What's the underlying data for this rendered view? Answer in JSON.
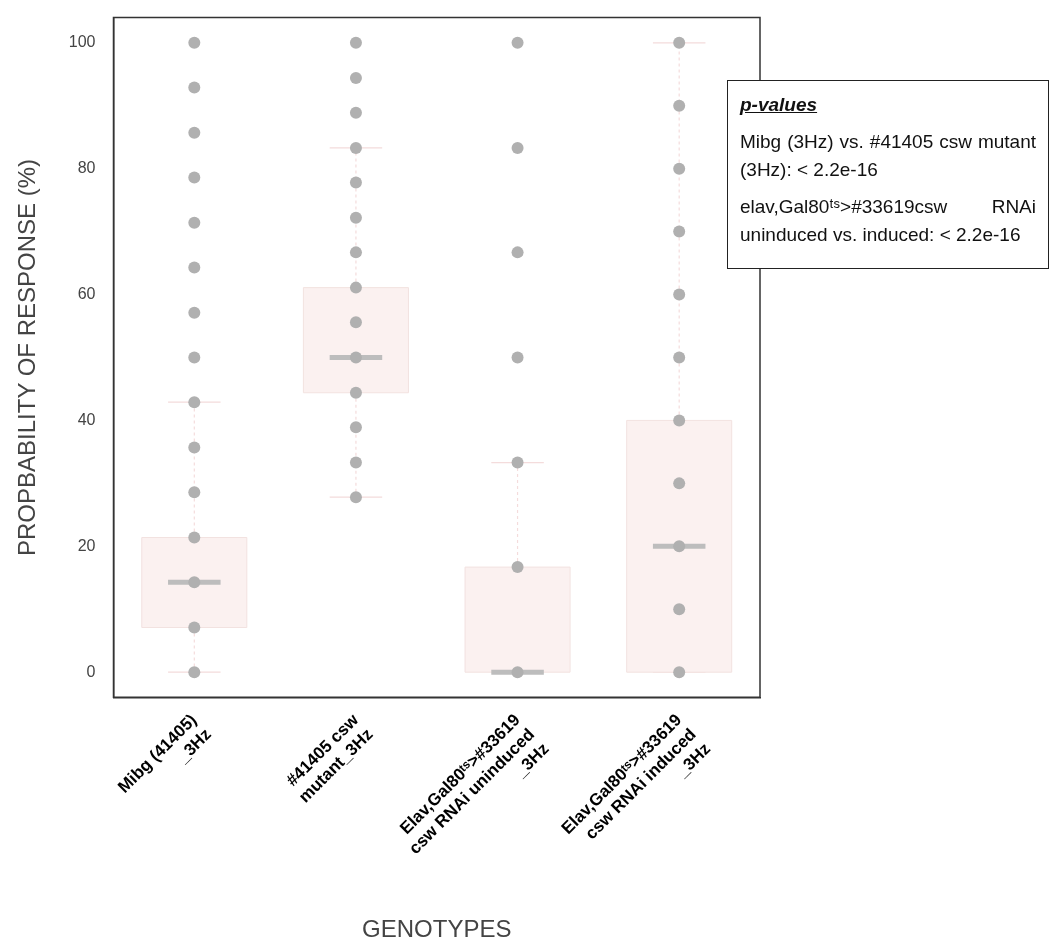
{
  "chart_data": {
    "type": "box",
    "xlabel": "GENOTYPES",
    "ylabel": "PROPBABILITY OF RESPONSE (%)",
    "categories": [
      "Mibg (41405) _3Hz",
      "#41405  csw mutant_3Hz",
      "Elav,Gal80ᵗˢ>#33619 csw RNAi uninduced _3Hz",
      "Elav,Gal80ᵗˢ>#33619 csw RNAi induced _3Hz"
    ],
    "ylim": [
      -4,
      104
    ],
    "yticks": [
      0,
      20,
      40,
      60,
      80,
      100
    ],
    "grid": false,
    "legend": false,
    "marker": "circle",
    "series": [
      {
        "color": "#fbf1f0",
        "boxes": [
          {
            "low": 0,
            "q1": 7.1,
            "median": 14.3,
            "q3": 21.4,
            "high": 42.9
          },
          {
            "low": 27.8,
            "q1": 44.4,
            "median": 50,
            "q3": 61.1,
            "high": 83.3
          },
          {
            "low": 0,
            "q1": 0,
            "median": 0,
            "q3": 16.7,
            "high": 33.3
          },
          {
            "low": 0,
            "q1": 0,
            "median": 20,
            "q3": 40,
            "high": 100
          }
        ]
      },
      {
        "type": "scatter",
        "color": "#b0b0b0",
        "x": [
          "Mibg (41405) _3Hz",
          "Mibg (41405) _3Hz",
          "Mibg (41405) _3Hz",
          "Mibg (41405) _3Hz",
          "Mibg (41405) _3Hz",
          "Mibg (41405) _3Hz",
          "Mibg (41405) _3Hz",
          "Mibg (41405) _3Hz",
          "Mibg (41405) _3Hz",
          "Mibg (41405) _3Hz",
          "Mibg (41405) _3Hz",
          "Mibg (41405) _3Hz",
          "Mibg (41405) _3Hz",
          "Mibg (41405) _3Hz",
          "Mibg (41405) _3Hz",
          "#41405  csw mutant_3Hz",
          "#41405  csw mutant_3Hz",
          "#41405  csw mutant_3Hz",
          "#41405  csw mutant_3Hz",
          "#41405  csw mutant_3Hz",
          "#41405  csw mutant_3Hz",
          "#41405  csw mutant_3Hz",
          "#41405  csw mutant_3Hz",
          "#41405  csw mutant_3Hz",
          "#41405  csw mutant_3Hz",
          "#41405  csw mutant_3Hz",
          "#41405  csw mutant_3Hz",
          "#41405  csw mutant_3Hz",
          "#41405  csw mutant_3Hz",
          "Elav,Gal80ᵗˢ>#33619 csw RNAi uninduced _3Hz",
          "Elav,Gal80ᵗˢ>#33619 csw RNAi uninduced _3Hz",
          "Elav,Gal80ᵗˢ>#33619 csw RNAi uninduced _3Hz",
          "Elav,Gal80ᵗˢ>#33619 csw RNAi uninduced _3Hz",
          "Elav,Gal80ᵗˢ>#33619 csw RNAi uninduced _3Hz",
          "Elav,Gal80ᵗˢ>#33619 csw RNAi uninduced _3Hz",
          "Elav,Gal80ᵗˢ>#33619 csw RNAi uninduced _3Hz",
          "Elav,Gal80ᵗˢ>#33619 csw RNAi induced _3Hz",
          "Elav,Gal80ᵗˢ>#33619 csw RNAi induced _3Hz",
          "Elav,Gal80ᵗˢ>#33619 csw RNAi induced _3Hz",
          "Elav,Gal80ᵗˢ>#33619 csw RNAi induced _3Hz",
          "Elav,Gal80ᵗˢ>#33619 csw RNAi induced _3Hz",
          "Elav,Gal80ᵗˢ>#33619 csw RNAi induced _3Hz",
          "Elav,Gal80ᵗˢ>#33619 csw RNAi induced _3Hz",
          "Elav,Gal80ᵗˢ>#33619 csw RNAi induced _3Hz",
          "Elav,Gal80ᵗˢ>#33619 csw RNAi induced _3Hz",
          "Elav,Gal80ᵗˢ>#33619 csw RNAi induced _3Hz",
          "Elav,Gal80ᵗˢ>#33619 csw RNAi induced _3Hz"
        ],
        "values": [
          0,
          7.1,
          14.3,
          21.4,
          28.6,
          35.7,
          42.9,
          50,
          57.1,
          64.3,
          71.4,
          78.6,
          85.7,
          92.9,
          100,
          27.8,
          33.3,
          38.9,
          44.4,
          50,
          55.6,
          61.1,
          66.7,
          72.2,
          77.8,
          83.3,
          88.9,
          94.4,
          100,
          0,
          16.7,
          33.3,
          50,
          66.7,
          83.3,
          100,
          0,
          10,
          20,
          30,
          40,
          50,
          60,
          70,
          80,
          90,
          100
        ]
      }
    ],
    "annotations": [
      "p-values",
      "Mibg (3Hz) vs. #41405 csw mutant (3Hz): < 2.2e-16",
      "elav,Gal80ᵗˢ>#33619csw RNAi uninduced vs. induced: < 2.2e-16"
    ]
  }
}
